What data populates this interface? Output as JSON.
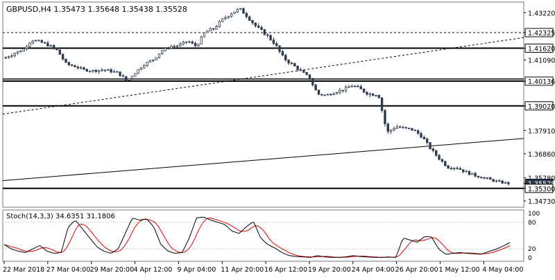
{
  "chart_data": [
    {
      "type": "candlestick",
      "title": "GBPUSD,H4  1.35473 1.35648 1.35438 1.35528",
      "ylim": [
        1.3445,
        1.437
      ],
      "y_ticks": [
        "1.43220",
        "1.42325",
        "1.41620",
        "1.41090",
        "1.40136",
        "1.39020",
        "1.37910",
        "1.36860",
        "1.35780",
        "1.35528",
        "1.35300",
        "1.34730"
      ],
      "x_tick_labels": [
        "22 Mar 2018",
        "27 Mar 04:00",
        "29 Mar 20:00",
        "4 Apr 12:00",
        "9 Apr 04:00",
        "11 Apr 20:00",
        "16 Apr 12:00",
        "19 Apr 20:00",
        "24 Apr 04:00",
        "26 Apr 20:00",
        "1 May 12:00",
        "4 May 04:00"
      ],
      "horizontal_levels": [
        {
          "value": 1.42325,
          "label": "1.42325",
          "style": "dashed"
        },
        {
          "value": 1.4162,
          "label": "1.41620",
          "style": "solid"
        },
        {
          "value": 1.40136,
          "label": "1.40136",
          "style": "solid"
        },
        {
          "value": 1.3902,
          "label": "1.39020",
          "style": "solid"
        },
        {
          "value": 1.353,
          "label": "1.35300",
          "style": "solid"
        }
      ],
      "current_price": 1.35528,
      "trendlines": [
        {
          "style": "dashed",
          "start": 1.3865,
          "end": 1.421
        },
        {
          "style": "solid",
          "start": 1.3565,
          "end": 1.3755
        }
      ],
      "close_path": [
        1.412,
        1.414,
        1.4155,
        1.42,
        1.419,
        1.4175,
        1.415,
        1.409,
        1.408,
        1.4065,
        1.406,
        1.4065,
        1.406,
        1.405,
        1.4015,
        1.4055,
        1.409,
        1.411,
        1.415,
        1.417,
        1.4175,
        1.4195,
        1.417,
        1.4235,
        1.425,
        1.429,
        1.432,
        1.434,
        1.43,
        1.4255,
        1.4225,
        1.4185,
        1.412,
        1.409,
        1.406,
        1.403,
        1.3955,
        1.395,
        1.3965,
        1.3975,
        1.3995,
        1.3975,
        1.3955,
        1.3955,
        1.378,
        1.381,
        1.38,
        1.3795,
        1.3765,
        1.371,
        1.3665,
        1.3625,
        1.3625,
        1.3605,
        1.359,
        1.358,
        1.3568,
        1.3558,
        1.35528
      ],
      "volatility": [
        0.0012,
        0.0014,
        0.001,
        0.0013,
        0.0012,
        0.0013,
        0.0015,
        0.0011,
        0.001,
        0.001,
        0.0011,
        0.0014,
        0.0012,
        0.0012,
        0.001,
        0.0011,
        0.001,
        0.0011,
        0.001,
        0.001,
        0.0011,
        0.0011,
        0.001,
        0.0013,
        0.0014,
        0.0014,
        0.0014,
        0.0012,
        0.0014,
        0.0016,
        0.0015,
        0.0016,
        0.0016,
        0.0013,
        0.0012,
        0.0011,
        0.001,
        0.001,
        0.0012,
        0.0013,
        0.0013,
        0.0016,
        0.0018,
        0.0014,
        0.002,
        0.0015,
        0.0013,
        0.0013,
        0.0014,
        0.0012,
        0.0011,
        0.0011,
        0.0012,
        0.0012,
        0.0012,
        0.001,
        0.001,
        0.001,
        0.001
      ]
    },
    {
      "type": "line",
      "title": "Stoch(14,3,3) 34.6351 31.1806",
      "ylim": [
        0,
        100
      ],
      "y_ticks": [
        "100",
        "80",
        "20",
        "0"
      ],
      "levels": [
        80,
        20
      ],
      "main_color": "#000000",
      "signal_color": "#e00000",
      "main_path": [
        30,
        20,
        15,
        12,
        20,
        28,
        15,
        10,
        12,
        70,
        85,
        65,
        45,
        25,
        15,
        10,
        20,
        55,
        90,
        85,
        88,
        70,
        30,
        15,
        10,
        12,
        45,
        90,
        92,
        85,
        80,
        75,
        60,
        55,
        70,
        82,
        45,
        30,
        22,
        12,
        5,
        3,
        2,
        1,
        5,
        2,
        1,
        1,
        2,
        5,
        3,
        2,
        1,
        1,
        2,
        1,
        45,
        40,
        35,
        48,
        47,
        20,
        8,
        10,
        12,
        10,
        9,
        8,
        14,
        19,
        26,
        34.6
      ]
    }
  ],
  "legend_colors": {
    "candle": "#2e3b4e",
    "grid": "#c8c8c8",
    "text": "#000000"
  }
}
